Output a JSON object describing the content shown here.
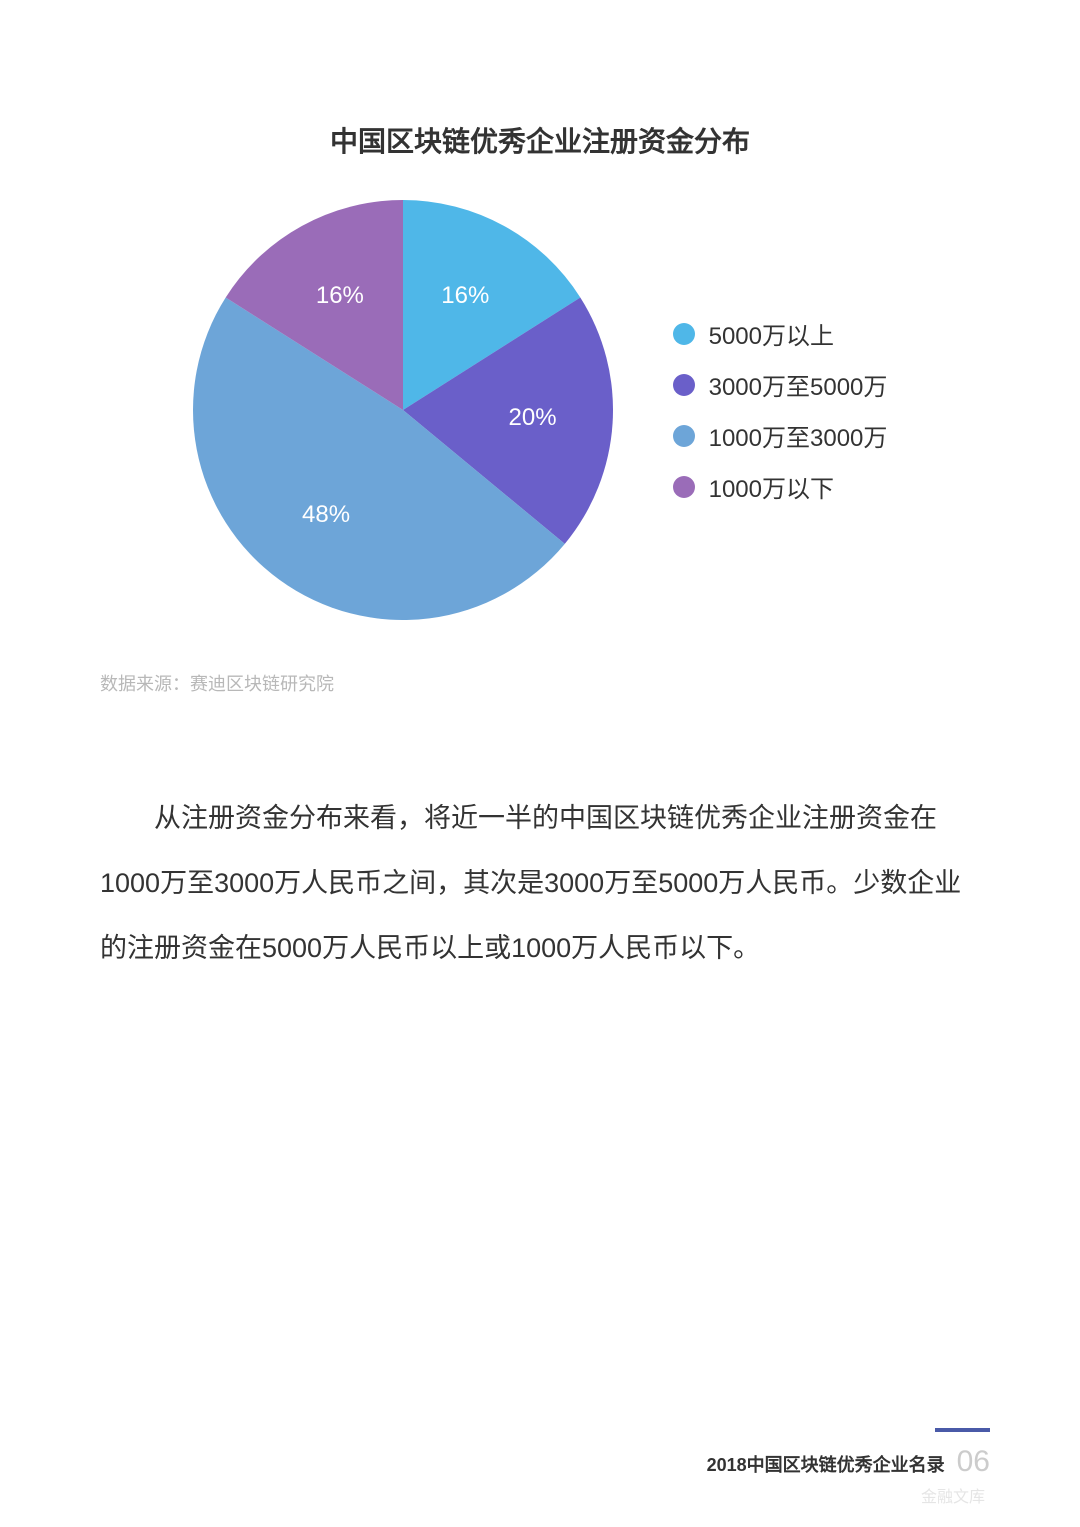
{
  "chart": {
    "type": "pie",
    "title": "中国区块链优秀企业注册资金分布",
    "title_fontsize": 28,
    "title_color": "#333333",
    "background_color": "#ffffff",
    "radius": 210,
    "slices": [
      {
        "label": "5000万以上",
        "value": 16,
        "percent_label": "16%",
        "color": "#4fb7e8"
      },
      {
        "label": "3000万至5000万",
        "value": 20,
        "percent_label": "20%",
        "color": "#6a5fc9"
      },
      {
        "label": "1000万至3000万",
        "value": 48,
        "percent_label": "48%",
        "color": "#6da5d8"
      },
      {
        "label": "1000万以下",
        "value": 16,
        "percent_label": "16%",
        "color": "#9a6cb8"
      }
    ],
    "slice_label_color": "#ffffff",
    "slice_label_fontsize": 24,
    "legend": {
      "position": "right",
      "fontsize": 24,
      "swatch_shape": "circle",
      "swatch_size": 22,
      "text_color": "#333333"
    }
  },
  "source": {
    "label": "数据来源：赛迪区块链研究院",
    "color": "#b8b8b8",
    "fontsize": 18
  },
  "body": {
    "text": "从注册资金分布来看，将近一半的中国区块链优秀企业注册资金在1000万至3000万人民币之间，其次是3000万至5000万人民币。少数企业的注册资金在5000万人民币以上或1000万人民币以下。",
    "fontsize": 27,
    "color": "#333333",
    "line_height": 2.4
  },
  "footer": {
    "title": "2018中国区块链优秀企业名录",
    "page_number": "06",
    "divider_color": "#4a5aa8",
    "pagenum_color": "#cccccc",
    "watermark": "金融文库"
  }
}
